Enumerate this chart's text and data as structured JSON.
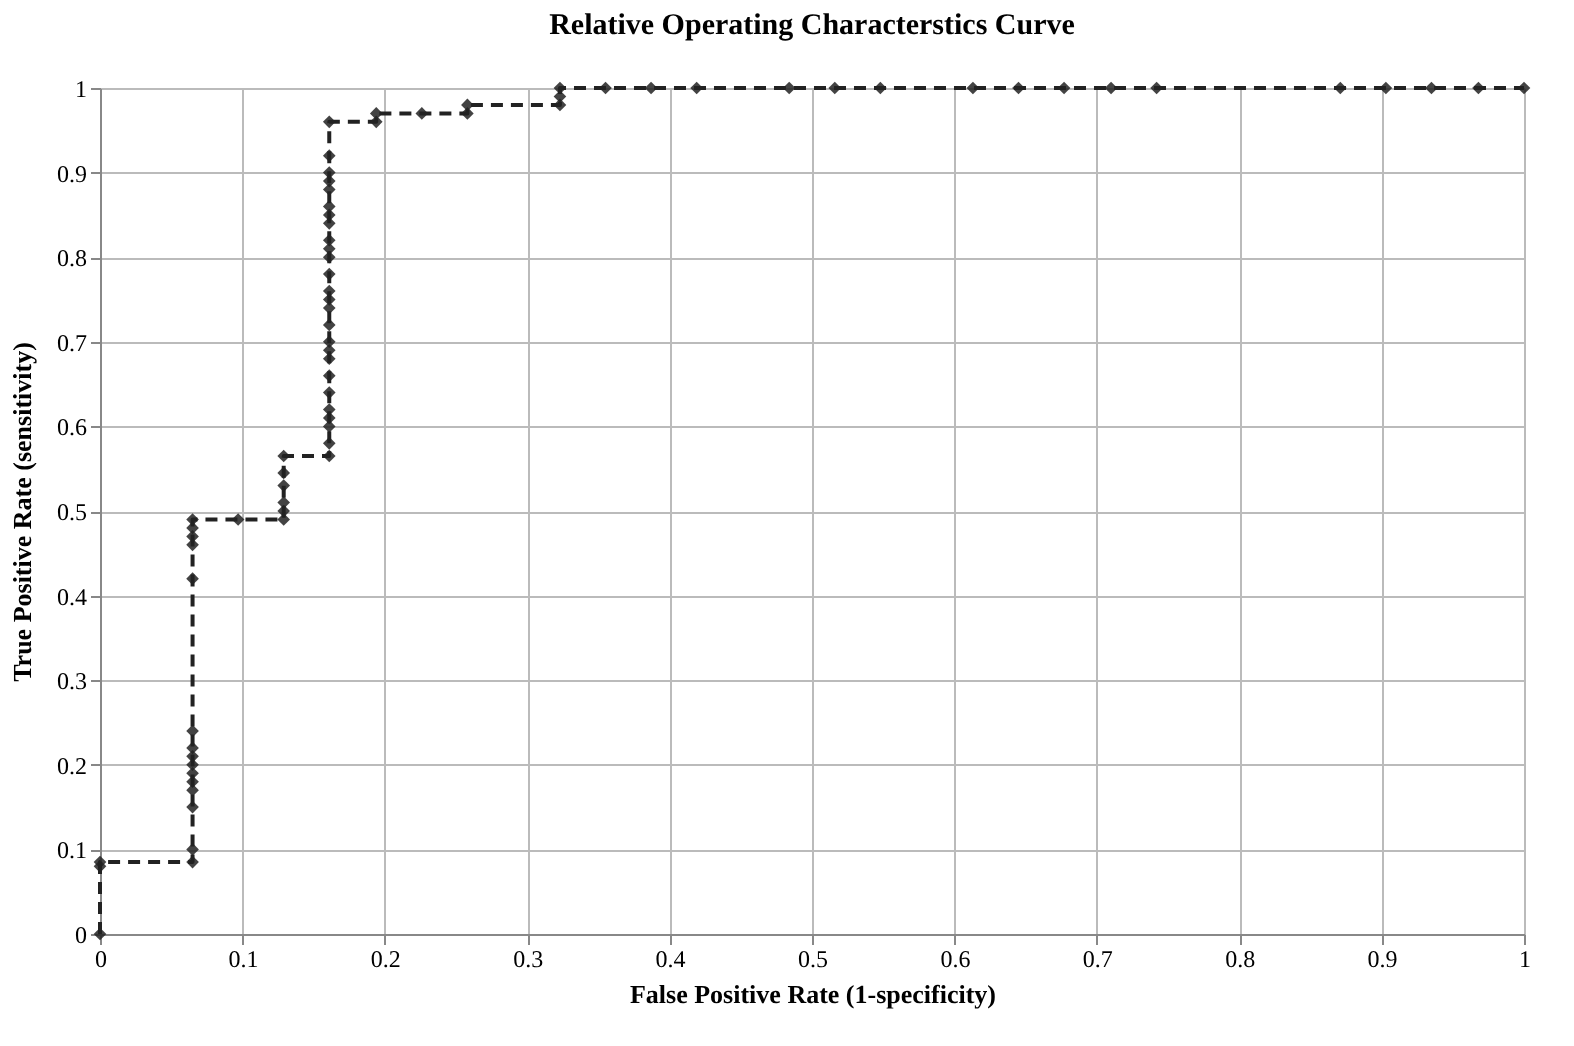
{
  "chart_data": {
    "type": "line",
    "title": "Relative Operating Characterstics Curve",
    "xlabel": "False Positive Rate (1-specificity)",
    "ylabel": "True Positive Rate (sensitivity)",
    "xlim": [
      0,
      1
    ],
    "xticks": [
      0,
      0.1,
      0.2,
      0.3,
      0.4,
      0.5,
      0.6,
      0.7,
      0.8,
      0.9,
      1
    ],
    "ylim": [
      0,
      1
    ],
    "yticks": [
      0,
      0.1,
      0.2,
      0.3,
      0.4,
      0.5,
      0.6,
      0.7,
      0.8,
      0.9,
      1
    ],
    "grid": true,
    "marker": "diamond",
    "line_style": "dashed",
    "series": [
      {
        "color": "#222222",
        "x": [
          0,
          0,
          0,
          0.065,
          0.065,
          0.065,
          0.065,
          0.065,
          0.065,
          0.065,
          0.065,
          0.065,
          0.065,
          0.065,
          0.065,
          0.065,
          0.065,
          0.065,
          0.097,
          0.129,
          0.129,
          0.129,
          0.129,
          0.129,
          0.129,
          0.161,
          0.161,
          0.161,
          0.161,
          0.161,
          0.161,
          0.161,
          0.161,
          0.161,
          0.161,
          0.161,
          0.161,
          0.161,
          0.161,
          0.161,
          0.161,
          0.161,
          0.161,
          0.161,
          0.161,
          0.161,
          0.161,
          0.161,
          0.161,
          0.161,
          0.161,
          0.194,
          0.194,
          0.226,
          0.258,
          0.258,
          0.323,
          0.323,
          0.323,
          0.355,
          0.387,
          0.419,
          0.484,
          0.516,
          0.548,
          0.613,
          0.645,
          0.677,
          0.71,
          0.742,
          0.871,
          0.903,
          0.935,
          0.968,
          1
        ],
        "values": [
          0,
          0.08,
          0.085,
          0.085,
          0.1,
          0.15,
          0.17,
          0.18,
          0.19,
          0.2,
          0.21,
          0.22,
          0.24,
          0.42,
          0.46,
          0.47,
          0.48,
          0.49,
          0.49,
          0.49,
          0.5,
          0.51,
          0.53,
          0.545,
          0.565,
          0.565,
          0.58,
          0.6,
          0.61,
          0.62,
          0.64,
          0.66,
          0.68,
          0.69,
          0.7,
          0.72,
          0.74,
          0.75,
          0.76,
          0.78,
          0.8,
          0.81,
          0.82,
          0.84,
          0.85,
          0.86,
          0.88,
          0.89,
          0.9,
          0.92,
          0.96,
          0.96,
          0.97,
          0.97,
          0.97,
          0.98,
          0.98,
          0.99,
          1,
          1,
          1,
          1,
          1,
          1,
          1,
          1,
          1,
          1,
          1,
          1,
          1,
          1,
          1,
          1,
          1
        ]
      }
    ]
  }
}
